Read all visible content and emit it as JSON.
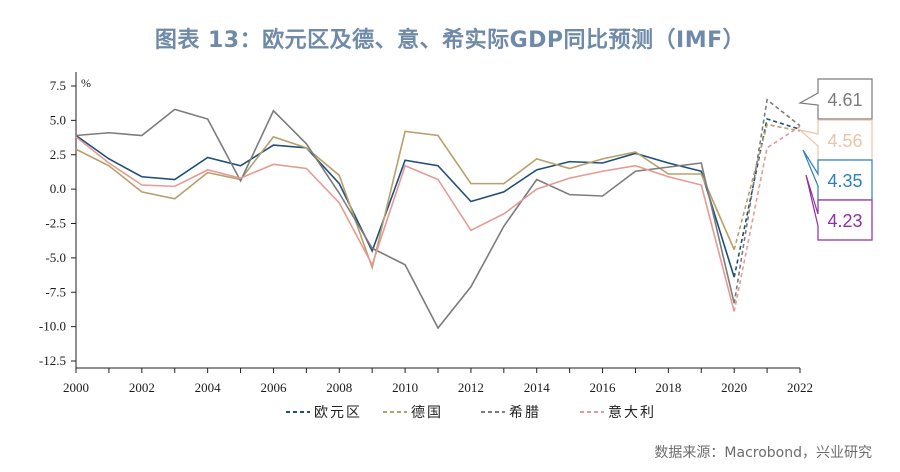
{
  "title": "图表 13：欧元区及德、意、希实际GDP同比预测（IMF）",
  "source": "数据来源：Macrobond，兴业研究",
  "chart_data": {
    "type": "line",
    "unit": "%",
    "x": [
      2000,
      2001,
      2002,
      2003,
      2004,
      2005,
      2006,
      2007,
      2008,
      2009,
      2010,
      2011,
      2012,
      2013,
      2014,
      2015,
      2016,
      2017,
      2018,
      2019,
      2020,
      2021,
      2022
    ],
    "x_tick_labels": [
      "2000",
      "2002",
      "2004",
      "2006",
      "2008",
      "2010",
      "2012",
      "2014",
      "2016",
      "2018",
      "2020",
      "2022"
    ],
    "y_tick_labels": [
      "7.5",
      "5.0",
      "2.5",
      "0.0",
      "-2.5",
      "-5.0",
      "-7.5",
      "-10.0",
      "-12.5"
    ],
    "ylim": [
      -12.5,
      7.5
    ],
    "y_ticks": [
      7.5,
      5.0,
      2.5,
      0.0,
      -2.5,
      -5.0,
      -7.5,
      -10.0,
      -12.5
    ],
    "forecast_start": 2020,
    "series": [
      {
        "name": "欧元区",
        "color": "#1f4e79",
        "values": [
          3.9,
          2.2,
          0.9,
          0.7,
          2.3,
          1.7,
          3.2,
          3.0,
          0.4,
          -4.5,
          2.1,
          1.7,
          -0.9,
          -0.2,
          1.4,
          2.0,
          1.9,
          2.6,
          1.9,
          1.3,
          -6.4,
          5.1,
          4.35
        ]
      },
      {
        "name": "德国",
        "color": "#b8a06a",
        "values": [
          2.9,
          1.7,
          -0.2,
          -0.7,
          1.2,
          0.7,
          3.8,
          3.0,
          1.0,
          -5.7,
          4.2,
          3.9,
          0.4,
          0.4,
          2.2,
          1.5,
          2.2,
          2.7,
          1.1,
          1.1,
          -4.4,
          4.7,
          4.23
        ]
      },
      {
        "name": "希腊",
        "color": "#7c7c7c",
        "values": [
          3.9,
          4.1,
          3.9,
          5.8,
          5.1,
          0.6,
          5.7,
          3.3,
          -0.3,
          -4.3,
          -5.5,
          -10.1,
          -7.1,
          -2.7,
          0.7,
          -0.4,
          -0.5,
          1.3,
          1.6,
          1.9,
          -8.3,
          6.5,
          4.61
        ]
      },
      {
        "name": "意大利",
        "color": "#e59b94",
        "values": [
          3.8,
          1.9,
          0.3,
          0.2,
          1.4,
          0.8,
          1.8,
          1.5,
          -1.0,
          -5.5,
          1.7,
          0.7,
          -3.0,
          -1.8,
          0.0,
          0.8,
          1.3,
          1.7,
          0.9,
          0.3,
          -8.9,
          3.0,
          4.56
        ]
      }
    ],
    "legend": [
      "欧元区",
      "德国",
      "希腊",
      "意大利"
    ],
    "legend_position": "bottom",
    "callouts": [
      {
        "label": "4.61",
        "color": "#7c7c7c",
        "series": "希腊"
      },
      {
        "label": "4.56",
        "color": "#edc3a8",
        "series": "意大利"
      },
      {
        "label": "4.35",
        "color": "#2f7fc1",
        "series": "欧元区"
      },
      {
        "label": "4.23",
        "color": "#8e2fa8",
        "series": "德国"
      }
    ]
  }
}
